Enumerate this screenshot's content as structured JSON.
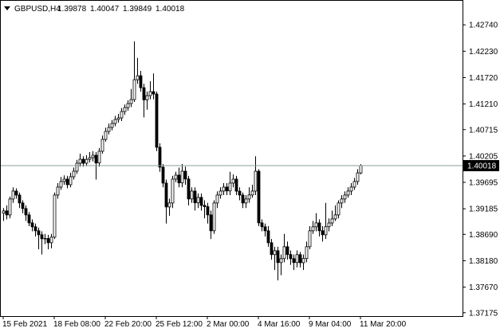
{
  "chart_data": {
    "type": "candlestick",
    "title": "GBPUSD,H4",
    "categories": [
      "15 Feb 2021",
      null,
      null,
      null,
      null,
      null,
      null,
      null,
      null,
      null,
      null,
      null,
      null,
      null,
      null,
      null,
      "18 Feb 08:00",
      null,
      null,
      null,
      null,
      null,
      null,
      null,
      null,
      null,
      null,
      null,
      null,
      null,
      null,
      null,
      "22 Feb 20:00",
      null,
      null,
      null,
      null,
      null,
      null,
      null,
      null,
      null,
      null,
      null,
      null,
      null,
      null,
      null,
      "25 Feb 12:00",
      null,
      null,
      null,
      null,
      null,
      null,
      null,
      null,
      null,
      null,
      null,
      null,
      null,
      null,
      null,
      "2 Mar 00:00",
      null,
      null,
      null,
      null,
      null,
      null,
      null,
      null,
      null,
      null,
      null,
      null,
      null,
      null,
      null,
      "4 Mar 16:00",
      null,
      null,
      null,
      null,
      null,
      null,
      null,
      null,
      null,
      null,
      null,
      null,
      null,
      null,
      null,
      "9 Mar 04:00",
      null,
      null,
      null,
      null,
      null,
      null,
      null,
      null,
      null,
      null,
      null,
      null,
      null,
      null,
      null,
      "11 Mar 20:00"
    ],
    "open": [
      1.391,
      1.39143,
      1.39066,
      1.39374,
      1.39527,
      1.3945,
      1.39297,
      1.39189,
      1.39066,
      1.38912,
      1.38836,
      1.38759,
      1.38682,
      1.38605,
      1.3861,
      1.38528,
      1.38636,
      1.3945,
      1.39604,
      1.39712,
      1.39758,
      1.3965,
      1.39804,
      1.39911,
      1.40065,
      1.40142,
      1.40065,
      1.4014,
      1.40173,
      1.40219,
      1.4007,
      1.40296,
      1.40526,
      1.4068,
      1.40757,
      1.40834,
      1.40911,
      1.40941,
      1.41064,
      1.41141,
      1.41218,
      1.41295,
      1.41679,
      1.41756,
      1.41525,
      1.4129,
      1.41372,
      1.41449,
      1.41403,
      1.40373,
      1.39989,
      1.39681,
      1.3922,
      1.39297,
      1.39758,
      1.39835,
      1.39685,
      1.39911,
      1.3976,
      1.39374,
      1.39527,
      1.393,
      1.39404,
      1.3925,
      1.39225,
      1.39066,
      1.38759,
      1.39297,
      1.3945,
      1.39527,
      1.39604,
      1.3953,
      1.39681,
      1.39758,
      1.39525,
      1.3945,
      1.39297,
      1.39374,
      1.39452,
      1.39527,
      1.39911,
      1.38912,
      1.38836,
      1.38759,
      1.38528,
      1.38298,
      1.38374,
      1.38144,
      1.38221,
      1.38451,
      1.383,
      1.3822,
      1.38145,
      1.38298,
      1.38142,
      1.38223,
      1.38451,
      1.38759,
      1.38836,
      1.38912,
      1.3876,
      1.38682,
      1.38838,
      1.3891,
      1.38989,
      1.39066,
      1.39297,
      1.39374,
      1.3945,
      1.39527,
      1.39604,
      1.39712,
      1.39878
    ],
    "high": [
      1.392,
      1.3925,
      1.3942,
      1.396,
      1.3958,
      1.395,
      1.3935,
      1.3925,
      1.3912,
      1.3898,
      1.389,
      1.3882,
      1.3875,
      1.387,
      1.3868,
      1.387,
      1.395,
      1.3968,
      1.398,
      1.3983,
      1.3982,
      1.3988,
      1.3998,
      1.4013,
      1.4025,
      1.402,
      1.4022,
      1.4028,
      1.403,
      1.4028,
      1.4036,
      1.406,
      1.4075,
      1.4083,
      1.409,
      1.4098,
      1.4102,
      1.4113,
      1.412,
      1.4128,
      1.415,
      1.4242,
      1.421,
      1.4185,
      1.416,
      1.4145,
      1.4165,
      1.418,
      1.4145,
      1.4045,
      1.4005,
      1.3975,
      1.3938,
      1.3982,
      1.399,
      1.3998,
      1.4005,
      1.4,
      1.3982,
      1.396,
      1.396,
      1.3948,
      1.3948,
      1.3935,
      1.393,
      1.3915,
      1.3935,
      1.3952,
      1.396,
      1.3968,
      1.3968,
      1.399,
      1.3985,
      1.3982,
      1.396,
      1.395,
      1.3945,
      1.396,
      1.3965,
      1.402,
      1.3995,
      1.3898,
      1.389,
      1.3885,
      1.386,
      1.3845,
      1.3845,
      1.383,
      1.387,
      1.3855,
      1.3838,
      1.383,
      1.3838,
      1.3835,
      1.383,
      1.3855,
      1.3885,
      1.3895,
      1.391,
      1.3898,
      1.3885,
      1.393,
      1.39,
      1.3915,
      1.3925,
      1.3935,
      1.3945,
      1.3952,
      1.396,
      1.3968,
      1.3978,
      1.3995,
      1.40047
    ],
    "low": [
      1.3895,
      1.3898,
      1.39,
      1.393,
      1.3938,
      1.392,
      1.391,
      1.3895,
      1.3885,
      1.3875,
      1.3865,
      1.384,
      1.383,
      1.385,
      1.384,
      1.3842,
      1.386,
      1.3938,
      1.3955,
      1.3965,
      1.3958,
      1.396,
      1.3975,
      1.3986,
      1.4,
      1.4,
      1.4001,
      1.4008,
      1.401,
      1.3975,
      1.4,
      1.4025,
      1.4048,
      1.4062,
      1.407,
      1.4078,
      1.4085,
      1.4088,
      1.41,
      1.4108,
      1.4115,
      1.4125,
      1.416,
      1.4145,
      1.4095,
      1.411,
      1.413,
      1.413,
      1.403,
      1.399,
      1.396,
      1.389,
      1.3905,
      1.392,
      1.397,
      1.396,
      1.396,
      1.3965,
      1.3925,
      1.393,
      1.3915,
      1.392,
      1.3915,
      1.39,
      1.389,
      1.386,
      1.387,
      1.392,
      1.3938,
      1.3945,
      1.3945,
      1.3945,
      1.396,
      1.3945,
      1.3935,
      1.392,
      1.392,
      1.393,
      1.394,
      1.3945,
      1.3885,
      1.3875,
      1.3865,
      1.3845,
      1.382,
      1.38,
      1.378,
      1.379,
      1.3815,
      1.382,
      1.381,
      1.38,
      1.3805,
      1.3805,
      1.38,
      1.3815,
      1.384,
      1.387,
      1.3875,
      1.3865,
      1.3855,
      1.386,
      1.3875,
      1.3885,
      1.3895,
      1.39,
      1.392,
      1.393,
      1.394,
      1.3945,
      1.3955,
      1.3965,
      1.39849
    ],
    "close": [
      1.39143,
      1.39066,
      1.39374,
      1.39527,
      1.3945,
      1.39297,
      1.39189,
      1.39066,
      1.38912,
      1.38836,
      1.38759,
      1.38682,
      1.38605,
      1.3861,
      1.38528,
      1.38636,
      1.3945,
      1.39604,
      1.39712,
      1.39758,
      1.3965,
      1.39804,
      1.39911,
      1.40065,
      1.40142,
      1.40065,
      1.4014,
      1.40173,
      1.40219,
      1.4007,
      1.40296,
      1.40526,
      1.4068,
      1.40757,
      1.40834,
      1.40911,
      1.40941,
      1.41064,
      1.41141,
      1.41218,
      1.41295,
      1.41679,
      1.41756,
      1.41525,
      1.4129,
      1.41372,
      1.41449,
      1.41403,
      1.40373,
      1.39989,
      1.39681,
      1.3922,
      1.39297,
      1.39758,
      1.39835,
      1.39685,
      1.39911,
      1.3976,
      1.39374,
      1.39527,
      1.393,
      1.39404,
      1.3925,
      1.39225,
      1.39066,
      1.38759,
      1.39297,
      1.3945,
      1.39527,
      1.39604,
      1.3953,
      1.39681,
      1.39758,
      1.39525,
      1.3945,
      1.39297,
      1.39374,
      1.39452,
      1.39527,
      1.39911,
      1.38912,
      1.38836,
      1.38759,
      1.38528,
      1.38298,
      1.38374,
      1.38144,
      1.38221,
      1.38451,
      1.383,
      1.3822,
      1.38145,
      1.38298,
      1.38142,
      1.38223,
      1.38451,
      1.38759,
      1.38836,
      1.38912,
      1.3876,
      1.38682,
      1.38838,
      1.3891,
      1.38989,
      1.39066,
      1.39297,
      1.39374,
      1.3945,
      1.39527,
      1.39604,
      1.39712,
      1.39878,
      1.40018
    ],
    "up_color": "#ffffff",
    "down_color": "#000000",
    "wick_color": "#000000",
    "price_line_color": "#8a9c9c",
    "ylim": [
      1.3711,
      1.4322
    ],
    "yticks": [
      {
        "value": 1.4274,
        "label": "1.42740"
      },
      {
        "value": 1.4223,
        "label": "1.42230"
      },
      {
        "value": 1.4172,
        "label": "1.41720"
      },
      {
        "value": 1.4121,
        "label": "1.41210"
      },
      1.40715,
      1.40205,
      1.39695,
      1.39185,
      {
        "value": 1.3869,
        "label": "1.38690"
      },
      {
        "value": 1.3818,
        "label": "1.38180"
      },
      {
        "value": 1.3767,
        "label": "1.37670"
      },
      1.37175
    ]
  }
}
